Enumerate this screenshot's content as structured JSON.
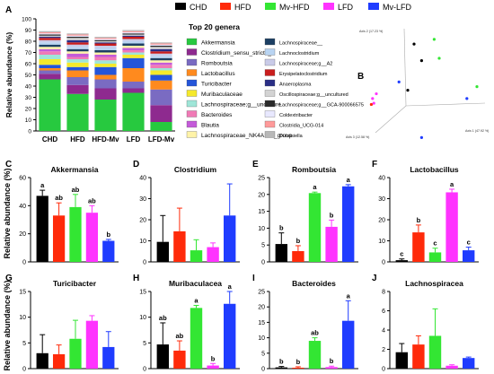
{
  "legend_top": [
    {
      "label": "CHD",
      "color": "#000000"
    },
    {
      "label": "HFD",
      "color": "#ff2a0a"
    },
    {
      "label": "Mv-HFD",
      "color": "#33e633"
    },
    {
      "label": "LFD",
      "color": "#ff33ff"
    },
    {
      "label": "Mv-LFD",
      "color": "#1f3cff"
    }
  ],
  "panel_letters": {
    "a": "A",
    "b": "B",
    "c": "C",
    "d": "D",
    "e": "E",
    "f": "F",
    "g": "G",
    "h": "H",
    "i": "I",
    "j": "J"
  },
  "shared_ylabel": "Relative abundance (%)",
  "chart_data": [
    {
      "type": "bar",
      "panel": "A",
      "stacked": true,
      "categories": [
        "CHD",
        "HFD",
        "HFD-Mv",
        "LFD",
        "LFD-Mv"
      ],
      "ylabel": "Relative abundance (%)",
      "ylim": [
        0,
        100
      ],
      "yticks": [
        0,
        10,
        20,
        30,
        40,
        50,
        60,
        70,
        80,
        90,
        100
      ],
      "legend_title": "Top 20 genera",
      "series": [
        {
          "name": "Akkermansia",
          "color": "#27c93f",
          "values": [
            46,
            33,
            28,
            34,
            8
          ]
        },
        {
          "name": "Clostridium_sensu_stricto_1",
          "color": "#8e2a8f",
          "values": [
            5,
            8,
            10,
            4,
            15
          ]
        },
        {
          "name": "Romboutsia",
          "color": "#7a6bc2",
          "values": [
            3,
            7,
            8,
            6,
            14
          ]
        },
        {
          "name": "Lactobacillus",
          "color": "#ff8a1e",
          "values": [
            2,
            6,
            4,
            12,
            8
          ]
        },
        {
          "name": "Turicibacter",
          "color": "#2455d9",
          "values": [
            3,
            3,
            7,
            9,
            5
          ]
        },
        {
          "name": "Muribaculaceae",
          "color": "#f5e92b",
          "values": [
            5,
            4,
            3,
            3,
            4
          ]
        },
        {
          "name": "Lachnospiraceae;g__unculture",
          "color": "#9fe6d8",
          "values": [
            4,
            3,
            3,
            2,
            2
          ]
        },
        {
          "name": "Bacteroides",
          "color": "#f07ab6",
          "values": [
            3,
            2,
            3,
            2,
            3
          ]
        },
        {
          "name": "Blautia",
          "color": "#c45bd9",
          "values": [
            2,
            3,
            2,
            2,
            2
          ]
        },
        {
          "name": "Lachnospiraceae_NK4A136_group",
          "color": "#fff3a8",
          "values": [
            2,
            2,
            2,
            2,
            2
          ]
        },
        {
          "name": "Lachnospiraceae__",
          "color": "#1d3f63",
          "values": [
            2,
            2,
            2,
            2,
            2
          ]
        },
        {
          "name": "Lachnoclostridium",
          "color": "#b9d4f2",
          "values": [
            2,
            2,
            2,
            2,
            2
          ]
        },
        {
          "name": "Lachnospiraceae;g__A2",
          "color": "#c9cbe8",
          "values": [
            2,
            2,
            2,
            2,
            2
          ]
        },
        {
          "name": "Erysipelatoclostridium",
          "color": "#c91d1d",
          "values": [
            2,
            2,
            2,
            2,
            2
          ]
        },
        {
          "name": "Anaeroplasma",
          "color": "#2a2e86",
          "values": [
            1,
            2,
            1,
            1,
            2
          ]
        },
        {
          "name": "Oscillospiraceae;g__uncultured",
          "color": "#d3d3d3",
          "values": [
            1,
            2,
            1,
            1,
            2
          ]
        },
        {
          "name": "Lachnospiraceae;g__GCA-900066575",
          "color": "#2a2a2a",
          "values": [
            1,
            1,
            1,
            1,
            1
          ]
        },
        {
          "name": "Coldextribacter",
          "color": "#e8e8ff",
          "values": [
            1,
            1,
            1,
            1,
            1
          ]
        },
        {
          "name": "Clostridia_UCG-014",
          "color": "#ff9a9a",
          "values": [
            1,
            1,
            1,
            1,
            1
          ]
        },
        {
          "name": "Dubosiella",
          "color": "#b8b8b8",
          "values": [
            1,
            1,
            1,
            1,
            1
          ]
        }
      ]
    },
    {
      "type": "scatter",
      "panel": "B",
      "axes": [
        "Axis 1 (47.92 %)",
        "Axis 2 (17.23 %)",
        "Axis 3 (12.58 %)"
      ],
      "points": [
        {
          "group": "Mv-HFD",
          "x": 0.56,
          "y": 0.88
        },
        {
          "group": "Mv-HFD",
          "x": 0.6,
          "y": 0.72
        },
        {
          "group": "Mv-HFD",
          "x": 0.9,
          "y": 0.48
        },
        {
          "group": "CHD",
          "x": 0.4,
          "y": 0.84
        },
        {
          "group": "CHD",
          "x": 0.46,
          "y": 0.7
        },
        {
          "group": "Mv-LFD",
          "x": 0.28,
          "y": 0.52
        },
        {
          "group": "Mv-LFD",
          "x": 0.82,
          "y": 0.38
        },
        {
          "group": "Mv-LFD",
          "x": 0.46,
          "y": 0.05
        },
        {
          "group": "LFD",
          "x": 0.1,
          "y": 0.42
        },
        {
          "group": "LFD",
          "x": 0.07,
          "y": 0.38
        },
        {
          "group": "LFD",
          "x": 0.08,
          "y": 0.34
        },
        {
          "group": "HFD",
          "x": 0.06,
          "y": 0.33
        },
        {
          "group": "CHD",
          "x": 0.35,
          "y": 0.45
        }
      ]
    },
    {
      "type": "bar",
      "panel": "C",
      "title": "Akkermansia",
      "ylim": [
        0,
        60
      ],
      "yticks": [
        0,
        20,
        40,
        60
      ],
      "categories": [
        "CHD",
        "HFD",
        "Mv-HFD",
        "LFD",
        "Mv-LFD"
      ],
      "values": [
        47,
        33,
        39,
        35,
        15
      ],
      "errors": [
        4,
        9,
        9,
        5,
        1
      ],
      "letters": [
        "a",
        "ab",
        "ab",
        "ab",
        "b"
      ]
    },
    {
      "type": "bar",
      "panel": "D",
      "title": "Clostridium",
      "ylim": [
        0,
        40
      ],
      "yticks": [
        0,
        10,
        20,
        30,
        40
      ],
      "categories": [
        "CHD",
        "HFD",
        "Mv-HFD",
        "LFD",
        "Mv-LFD"
      ],
      "values": [
        9.5,
        14.5,
        5.5,
        7,
        22
      ],
      "errors": [
        12.5,
        11,
        5,
        2,
        15
      ],
      "letters": [
        "",
        "",
        "",
        "",
        ""
      ]
    },
    {
      "type": "bar",
      "panel": "E",
      "title": "Romboutsia",
      "ylim": [
        0,
        25
      ],
      "yticks": [
        0,
        5,
        10,
        15,
        20,
        25
      ],
      "categories": [
        "CHD",
        "HFD",
        "Mv-HFD",
        "LFD",
        "Mv-LFD"
      ],
      "values": [
        5.3,
        3.2,
        20.4,
        10.4,
        22.4
      ],
      "errors": [
        3.3,
        1.6,
        0.3,
        2,
        0.5
      ],
      "letters": [
        "b",
        "b",
        "a",
        "b",
        "a"
      ]
    },
    {
      "type": "bar",
      "panel": "F",
      "title": "Lactobacillus",
      "ylim": [
        0,
        40
      ],
      "yticks": [
        0,
        10,
        20,
        30,
        40
      ],
      "categories": [
        "CHD",
        "HFD",
        "Mv-HFD",
        "LFD",
        "Mv-LFD"
      ],
      "values": [
        0.8,
        14,
        4.5,
        33,
        5.5
      ],
      "errors": [
        0.6,
        3.5,
        2,
        1.5,
        1.5
      ],
      "letters": [
        "c",
        "b",
        "c",
        "a",
        "c"
      ]
    },
    {
      "type": "bar",
      "panel": "G",
      "title": "Turicibacter",
      "ylim": [
        0,
        15
      ],
      "yticks": [
        0,
        5,
        10,
        15
      ],
      "categories": [
        "CHD",
        "HFD",
        "Mv-HFD",
        "LFD",
        "Mv-LFD"
      ],
      "values": [
        3,
        2.8,
        5.8,
        9.3,
        4.2
      ],
      "errors": [
        3.6,
        1.8,
        3.6,
        1,
        3
      ],
      "letters": [
        "",
        "",
        "",
        "",
        ""
      ]
    },
    {
      "type": "bar",
      "panel": "H",
      "title": "Muribaculacea",
      "ylim": [
        0,
        15
      ],
      "yticks": [
        0,
        5,
        10,
        15
      ],
      "categories": [
        "CHD",
        "HFD",
        "Mv-HFD",
        "LFD",
        "Mv-LFD"
      ],
      "values": [
        4.7,
        3.5,
        11.8,
        0.6,
        12.6
      ],
      "errors": [
        4.2,
        1.9,
        0.5,
        0.4,
        2.6
      ],
      "letters": [
        "ab",
        "ab",
        "a",
        "b",
        "a"
      ]
    },
    {
      "type": "bar",
      "panel": "I",
      "title": "Bacteroides",
      "ylim": [
        0,
        25
      ],
      "yticks": [
        0,
        5,
        10,
        15,
        20,
        25
      ],
      "categories": [
        "CHD",
        "HFD",
        "Mv-HFD",
        "LFD",
        "Mv-LFD"
      ],
      "values": [
        0.4,
        0.3,
        9,
        0.5,
        15.5
      ],
      "errors": [
        0.3,
        0.3,
        1,
        0.3,
        6.5
      ],
      "letters": [
        "b",
        "b",
        "ab",
        "b",
        "a"
      ]
    },
    {
      "type": "bar",
      "panel": "J",
      "title": "Lachnospiracea",
      "ylim": [
        0,
        8
      ],
      "yticks": [
        0,
        2,
        4,
        6,
        8
      ],
      "categories": [
        "CHD",
        "HFD",
        "Mv-HFD",
        "LFD",
        "Mv-LFD"
      ],
      "values": [
        1.7,
        2.5,
        3.4,
        0.3,
        1.1
      ],
      "errors": [
        0.9,
        0.9,
        2.8,
        0.1,
        0.1
      ],
      "letters": [
        "",
        "",
        "",
        "",
        ""
      ]
    }
  ]
}
